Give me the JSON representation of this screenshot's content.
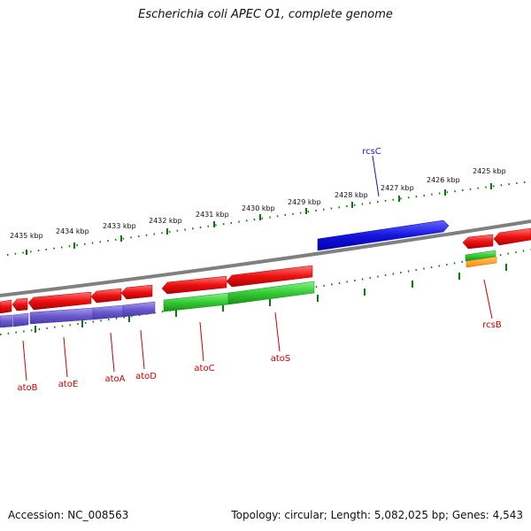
{
  "title": "Escherichia coli APEC O1, complete genome",
  "footer": {
    "accession": "Accession: NC_008563",
    "summary": "Topology: circular; Length: 5,082,025 bp; Genes: 4,543"
  },
  "ruler": {
    "upper_labels": [
      "2435 kbp",
      "2434 kbp",
      "2433 kbp",
      "2432 kbp",
      "2431 kbp",
      "2430 kbp",
      "2429 kbp",
      "2428 kbp",
      "2427 kbp",
      "2426 kbp",
      "2425 kbp"
    ]
  },
  "gene_labels": {
    "atoB": "atoB",
    "atoE": "atoE",
    "atoA": "atoA",
    "atoD": "atoD",
    "atoC": "atoC",
    "atoS": "atoS",
    "rcsC": "rcsC",
    "rcsB": "rcsB"
  },
  "colors": {
    "red": "#ee1111",
    "green": "#33cc33",
    "purple": "#6a5acd",
    "blue": "#1515dd",
    "orange": "#ff9900",
    "backbone": "#808080",
    "tick": "#0a7a0a",
    "label_red": "#cc0000",
    "label_blue": "#1a1acc"
  }
}
